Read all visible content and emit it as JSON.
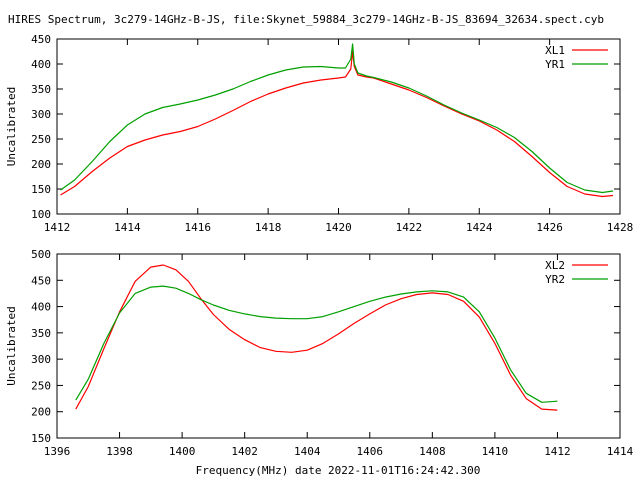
{
  "title": "HIRES Spectrum, 3c279-14GHz-B-JS, file:Skynet_59884_3c279-14GHz-B-JS_83694_32634.spect.cyb",
  "xlabel": "Frequency(MHz) date 2022-11-01T16:24:42.300",
  "chart_data": [
    {
      "type": "line",
      "ylabel": "Uncalibrated",
      "xlim": [
        1412,
        1428
      ],
      "ylim": [
        100,
        450
      ],
      "xticks": [
        1412,
        1414,
        1416,
        1418,
        1420,
        1422,
        1424,
        1426,
        1428
      ],
      "yticks": [
        100,
        150,
        200,
        250,
        300,
        350,
        400,
        450
      ],
      "grid": false,
      "legend": "top-right",
      "series": [
        {
          "name": "XL1",
          "color": "#ff0000",
          "x": [
            1412.1,
            1412.5,
            1413.0,
            1413.5,
            1414.0,
            1414.5,
            1415.0,
            1415.5,
            1416.0,
            1416.5,
            1417.0,
            1417.5,
            1418.0,
            1418.5,
            1419.0,
            1419.5,
            1420.0,
            1420.2,
            1420.35,
            1420.4,
            1420.45,
            1420.55,
            1420.8,
            1421.0,
            1421.5,
            1422.0,
            1422.5,
            1423.0,
            1423.5,
            1424.0,
            1424.5,
            1425.0,
            1425.5,
            1426.0,
            1426.5,
            1427.0,
            1427.5,
            1427.8
          ],
          "y": [
            138,
            155,
            185,
            212,
            235,
            248,
            258,
            265,
            275,
            290,
            307,
            325,
            340,
            352,
            362,
            368,
            372,
            374,
            390,
            425,
            395,
            378,
            374,
            372,
            360,
            348,
            333,
            316,
            300,
            286,
            268,
            245,
            215,
            183,
            155,
            140,
            135,
            137
          ]
        },
        {
          "name": "YR1",
          "color": "#00a000",
          "x": [
            1412.1,
            1412.5,
            1413.0,
            1413.5,
            1414.0,
            1414.5,
            1415.0,
            1415.5,
            1416.0,
            1416.5,
            1417.0,
            1417.5,
            1418.0,
            1418.5,
            1419.0,
            1419.5,
            1420.0,
            1420.2,
            1420.35,
            1420.4,
            1420.45,
            1420.55,
            1420.8,
            1421.0,
            1421.5,
            1422.0,
            1422.5,
            1423.0,
            1423.5,
            1424.0,
            1424.5,
            1425.0,
            1425.5,
            1426.0,
            1426.5,
            1427.0,
            1427.5,
            1427.8
          ],
          "y": [
            148,
            168,
            205,
            245,
            278,
            300,
            313,
            320,
            328,
            338,
            350,
            365,
            378,
            388,
            394,
            395,
            392,
            392,
            410,
            440,
            400,
            382,
            376,
            373,
            364,
            352,
            336,
            318,
            302,
            288,
            273,
            253,
            225,
            192,
            163,
            148,
            143,
            146
          ]
        }
      ]
    },
    {
      "type": "line",
      "ylabel": "Uncalibrated",
      "xlim": [
        1396,
        1414
      ],
      "ylim": [
        150,
        500
      ],
      "xticks": [
        1396,
        1398,
        1400,
        1402,
        1404,
        1406,
        1408,
        1410,
        1412,
        1414
      ],
      "yticks": [
        150,
        200,
        250,
        300,
        350,
        400,
        450,
        500
      ],
      "grid": false,
      "legend": "top-right",
      "series": [
        {
          "name": "XL2",
          "color": "#ff0000",
          "x": [
            1396.6,
            1397.0,
            1397.5,
            1398.0,
            1398.5,
            1399.0,
            1399.4,
            1399.8,
            1400.2,
            1400.6,
            1401.0,
            1401.5,
            1402.0,
            1402.5,
            1403.0,
            1403.5,
            1404.0,
            1404.5,
            1405.0,
            1405.5,
            1406.0,
            1406.5,
            1407.0,
            1407.5,
            1408.0,
            1408.5,
            1409.0,
            1409.5,
            1410.0,
            1410.5,
            1411.0,
            1411.5,
            1412.0
          ],
          "y": [
            205,
            248,
            320,
            390,
            448,
            475,
            479,
            470,
            448,
            415,
            385,
            357,
            337,
            322,
            315,
            313,
            317,
            330,
            348,
            368,
            386,
            403,
            415,
            423,
            426,
            423,
            410,
            380,
            330,
            270,
            225,
            205,
            203
          ]
        },
        {
          "name": "YR2",
          "color": "#00a000",
          "x": [
            1396.6,
            1397.0,
            1397.5,
            1398.0,
            1398.5,
            1399.0,
            1399.4,
            1399.8,
            1400.2,
            1400.6,
            1401.0,
            1401.5,
            1402.0,
            1402.5,
            1403.0,
            1403.5,
            1404.0,
            1404.5,
            1405.0,
            1405.5,
            1406.0,
            1406.5,
            1407.0,
            1407.5,
            1408.0,
            1408.5,
            1409.0,
            1409.5,
            1410.0,
            1410.5,
            1411.0,
            1411.5,
            1412.0
          ],
          "y": [
            222,
            262,
            330,
            388,
            425,
            437,
            439,
            435,
            425,
            413,
            403,
            393,
            386,
            381,
            378,
            377,
            377,
            381,
            390,
            400,
            410,
            418,
            424,
            428,
            430,
            428,
            418,
            390,
            340,
            280,
            235,
            218,
            220
          ]
        }
      ]
    }
  ]
}
